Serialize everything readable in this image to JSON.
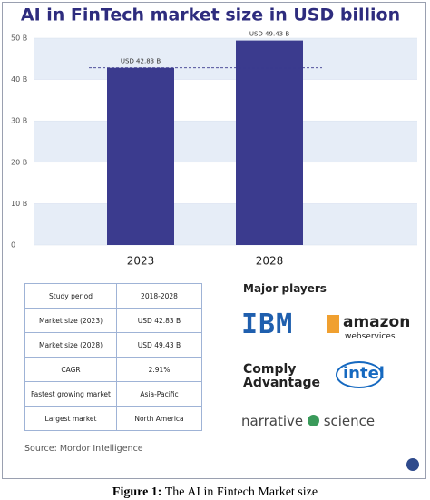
{
  "chart_data": {
    "type": "bar",
    "title": "AI in FinTech market size in USD billion",
    "categories": [
      "2023",
      "2028"
    ],
    "values": [
      42.83,
      49.43
    ],
    "value_labels": [
      "USD 42.83 B",
      "USD 49.43 B"
    ],
    "color": "#3b3b8e",
    "ylim": [
      0,
      50
    ],
    "yticks": [
      0,
      {
        "value": 10,
        "label": "10 B"
      },
      {
        "value": 20,
        "label": "20 B"
      },
      {
        "value": 30,
        "label": "30 B"
      },
      {
        "value": 40,
        "label": "40 B"
      },
      {
        "value": 50,
        "label": "50 B"
      }
    ],
    "grid": true
  },
  "table": {
    "rows": [
      [
        "Study period",
        "2018-2028"
      ],
      [
        "Market size (2023)",
        "USD 42.83 B"
      ],
      [
        "Market size (2028)",
        "USD 49.43 B"
      ],
      [
        "CAGR",
        "2.91%"
      ],
      [
        "Fastest growing market",
        "Asia-Pacific"
      ],
      [
        "Largest market",
        "North America"
      ]
    ]
  },
  "major_players": {
    "heading": "Major players",
    "ibm": "IBM",
    "amazon": "amazon",
    "aws": "webservices",
    "comply": [
      "Comply",
      "Advantage"
    ],
    "intel": "intel",
    "narrative": "narrative",
    "science": "science"
  },
  "source": "Source: Mordor Intelligence",
  "caption": {
    "label": "Figure 1:",
    "text": "The AI in Fintech Market size"
  }
}
